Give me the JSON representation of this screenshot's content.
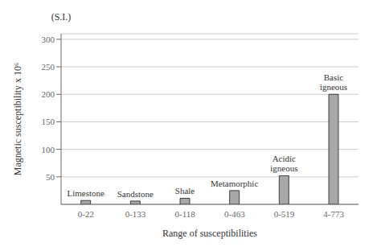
{
  "chart_data": {
    "type": "bar",
    "categories": [
      "0-22",
      "0-133",
      "0-118",
      "0-463",
      "0-519",
      "4-773"
    ],
    "values": [
      7,
      6,
      11,
      25,
      52,
      200
    ],
    "color": "#a8a8a8",
    "xlabel": "Range of susceptibilities",
    "ylabel": "Magnetic susceptibility x 10⁶",
    "ylabel_top": "(S.I.)",
    "annotations": [
      {
        "category": "0-22",
        "text": "Limestone"
      },
      {
        "category": "0-133",
        "text": "Sandstone"
      },
      {
        "category": "0-118",
        "text": "Shale"
      },
      {
        "category": "0-463",
        "text": "Metamorphic"
      },
      {
        "category": "0-519",
        "text": "Acidic\nigneous"
      },
      {
        "category": "4-773",
        "text": "Basic\nigneous"
      }
    ],
    "ylim": [
      0,
      310
    ],
    "yticks": [
      50,
      100,
      150,
      200,
      250,
      300
    ],
    "grid": true
  }
}
